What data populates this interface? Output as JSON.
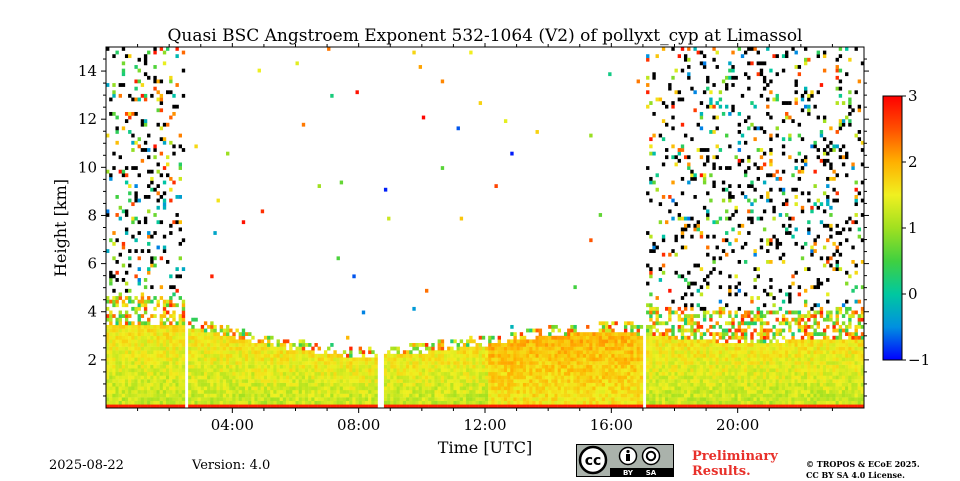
{
  "chart_data": {
    "type": "heatmap",
    "title": "Quasi BSC Angstroem Exponent 532-1064 (V2) of pollyxt_cyp at Limassol",
    "xlabel": "Time [UTC]",
    "ylabel": "Height [km]",
    "xlim_hours": [
      0,
      24
    ],
    "ylim_km": [
      0,
      15
    ],
    "x_ticks": [
      {
        "value": 4,
        "label": "04:00"
      },
      {
        "value": 8,
        "label": "08:00"
      },
      {
        "value": 12,
        "label": "12:00"
      },
      {
        "value": 16,
        "label": "16:00"
      },
      {
        "value": 20,
        "label": "20:00"
      }
    ],
    "y_ticks": [
      {
        "value": 2,
        "label": "2"
      },
      {
        "value": 4,
        "label": "4"
      },
      {
        "value": 6,
        "label": "6"
      },
      {
        "value": 8,
        "label": "8"
      },
      {
        "value": 10,
        "label": "10"
      },
      {
        "value": 12,
        "label": "12"
      },
      {
        "value": 14,
        "label": "14"
      }
    ],
    "colorbar": {
      "min": -1,
      "max": 3,
      "ticks": [
        {
          "value": 3,
          "label": "3"
        },
        {
          "value": 2,
          "label": "2"
        },
        {
          "value": 1,
          "label": "1"
        },
        {
          "value": 0,
          "label": "0"
        },
        {
          "value": -1,
          "label": "−1"
        }
      ],
      "colors": [
        "#0000ff",
        "#0090e0",
        "#00c8a0",
        "#40d040",
        "#a0e020",
        "#f0f020",
        "#ffb000",
        "#ff5000",
        "#ff0000"
      ]
    },
    "data_gaps_hours": [
      [
        2.5,
        2.65
      ],
      [
        8.6,
        8.8
      ],
      [
        16.95,
        17.1
      ]
    ],
    "aerosol_layer_top_km": [
      {
        "t": 0,
        "h": 3.4
      },
      {
        "t": 2.5,
        "h": 3.4
      },
      {
        "t": 3.5,
        "h": 3.1
      },
      {
        "t": 5.5,
        "h": 2.5
      },
      {
        "t": 8.0,
        "h": 2.1
      },
      {
        "t": 10.0,
        "h": 2.3
      },
      {
        "t": 12.0,
        "h": 2.6
      },
      {
        "t": 14.0,
        "h": 3.0
      },
      {
        "t": 16.5,
        "h": 3.2
      },
      {
        "t": 17.0,
        "h": 3.0
      },
      {
        "t": 20.0,
        "h": 2.7
      },
      {
        "t": 24,
        "h": 2.9
      }
    ],
    "noisy_periods_hours": [
      [
        0,
        2.5
      ],
      [
        17.1,
        24
      ]
    ]
  },
  "footer": {
    "date": "2025-08-22",
    "version": "Version: 4.0",
    "license_badge": {
      "cc": "cc",
      "by": "BY",
      "sa": "SA"
    },
    "preliminary_line1": "Preliminary",
    "preliminary_line2": "Results.",
    "preliminary_color": "#e8302a",
    "copyright_line1": "© TROPOS & ECoE 2025.",
    "copyright_line2": "CC BY SA 4.0 License."
  }
}
